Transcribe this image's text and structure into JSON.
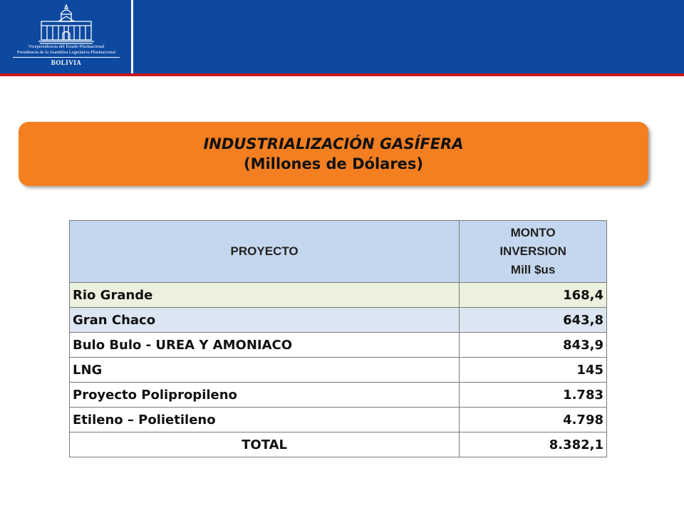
{
  "header": {
    "logo": {
      "line1": "Vicepresidencia del Estado Plurinacional",
      "line2": "Presidencia de la Asamblea Legislativa Plurinacional",
      "country": "BOLIVIA",
      "icon": "government-building-icon"
    }
  },
  "banner": {
    "title": "INDUSTRIALIZACIÓN GASÍFERA",
    "subtitle": "(Millones de Dólares)"
  },
  "table": {
    "header_project": "PROYECTO",
    "header_amount_lines": [
      "MONTO",
      "INVERSION",
      "Mill $us"
    ],
    "rows": [
      {
        "project": "Rio Grande",
        "amount": "168,4"
      },
      {
        "project": "Gran Chaco",
        "amount": "643,8"
      },
      {
        "project": "Bulo Bulo - UREA Y AMONIACO",
        "amount": "843,9"
      },
      {
        "project": "LNG",
        "amount": "145"
      },
      {
        "project": "Proyecto Polipropileno",
        "amount": "1.783"
      },
      {
        "project": "Etileno – Polietileno",
        "amount": "4.798"
      }
    ],
    "total_label": "TOTAL",
    "total_amount": "8.382,1"
  },
  "colors": {
    "header_blue": "#0d49a0",
    "header_red_stripe": "#c6161d",
    "banner_orange": "#f47f21",
    "table_header_bg": "#c5d7ee",
    "row_green": "#ebf1de",
    "row_blue": "#dce6f2"
  }
}
